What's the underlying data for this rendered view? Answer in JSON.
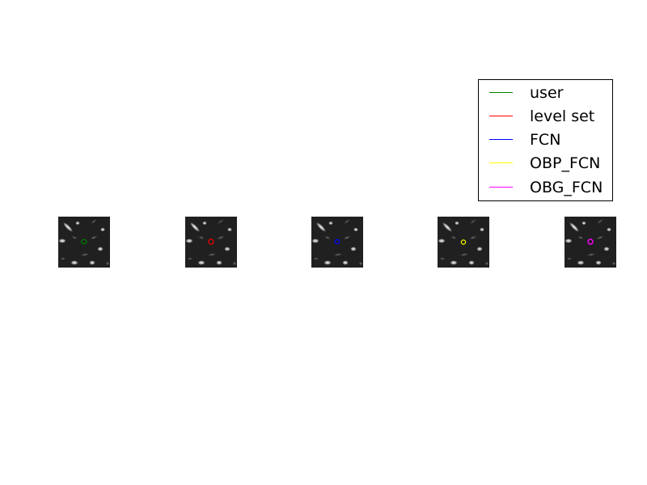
{
  "legend": {
    "placement": "top-right",
    "entries": [
      {
        "label": "user",
        "color": "#008000"
      },
      {
        "label": "level set",
        "color": "#ff0000"
      },
      {
        "label": "FCN",
        "color": "#0000ff"
      },
      {
        "label": "OBP_FCN",
        "color": "#ffff00"
      },
      {
        "label": "OBG_FCN",
        "color": "#ff00ff"
      }
    ]
  },
  "panels": [
    {
      "method": "user",
      "contour_color": "#008000"
    },
    {
      "method": "level set",
      "contour_color": "#ff0000"
    },
    {
      "method": "FCN",
      "contour_color": "#0000ff"
    },
    {
      "method": "OBP_FCN",
      "contour_color": "#ffff00"
    },
    {
      "method": "OBG_FCN",
      "contour_color": "#ff00ff"
    }
  ]
}
